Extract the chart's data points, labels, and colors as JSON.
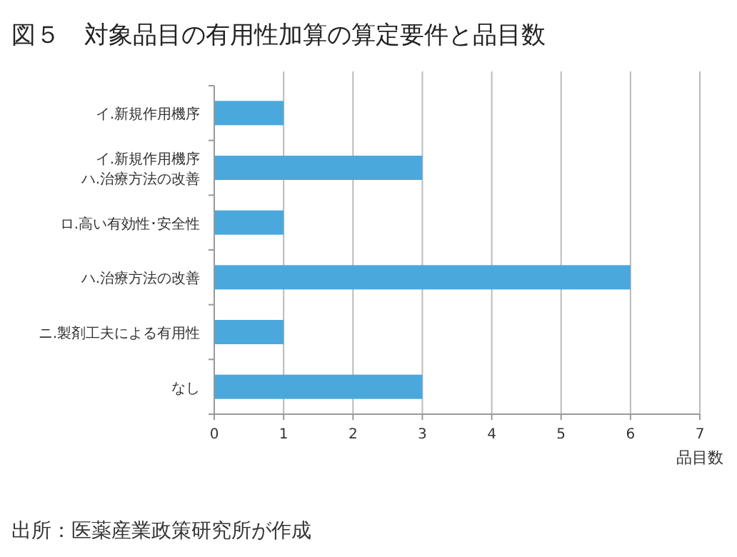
{
  "chart_data": {
    "type": "bar",
    "orientation": "horizontal",
    "title": "図５　対象品目の有用性加算の算定要件と品目数",
    "categories": [
      "イ.新規作用機序",
      "イ.新規作用機序ハ.治療方法の改善",
      "ロ.高い有効性･安全性",
      "ハ.治療方法の改善",
      "ニ.製剤工夫による有用性",
      "なし"
    ],
    "values": [
      1,
      3,
      1,
      6,
      1,
      3
    ],
    "color": "#4aa8dc",
    "xlim": [
      0,
      7
    ],
    "xticks": [
      0,
      1,
      2,
      3,
      4,
      5,
      6,
      7
    ],
    "xlabel": "品目数",
    "grid": "x",
    "annotations": [
      "出所：医薬産業政策研究所が作成"
    ]
  }
}
